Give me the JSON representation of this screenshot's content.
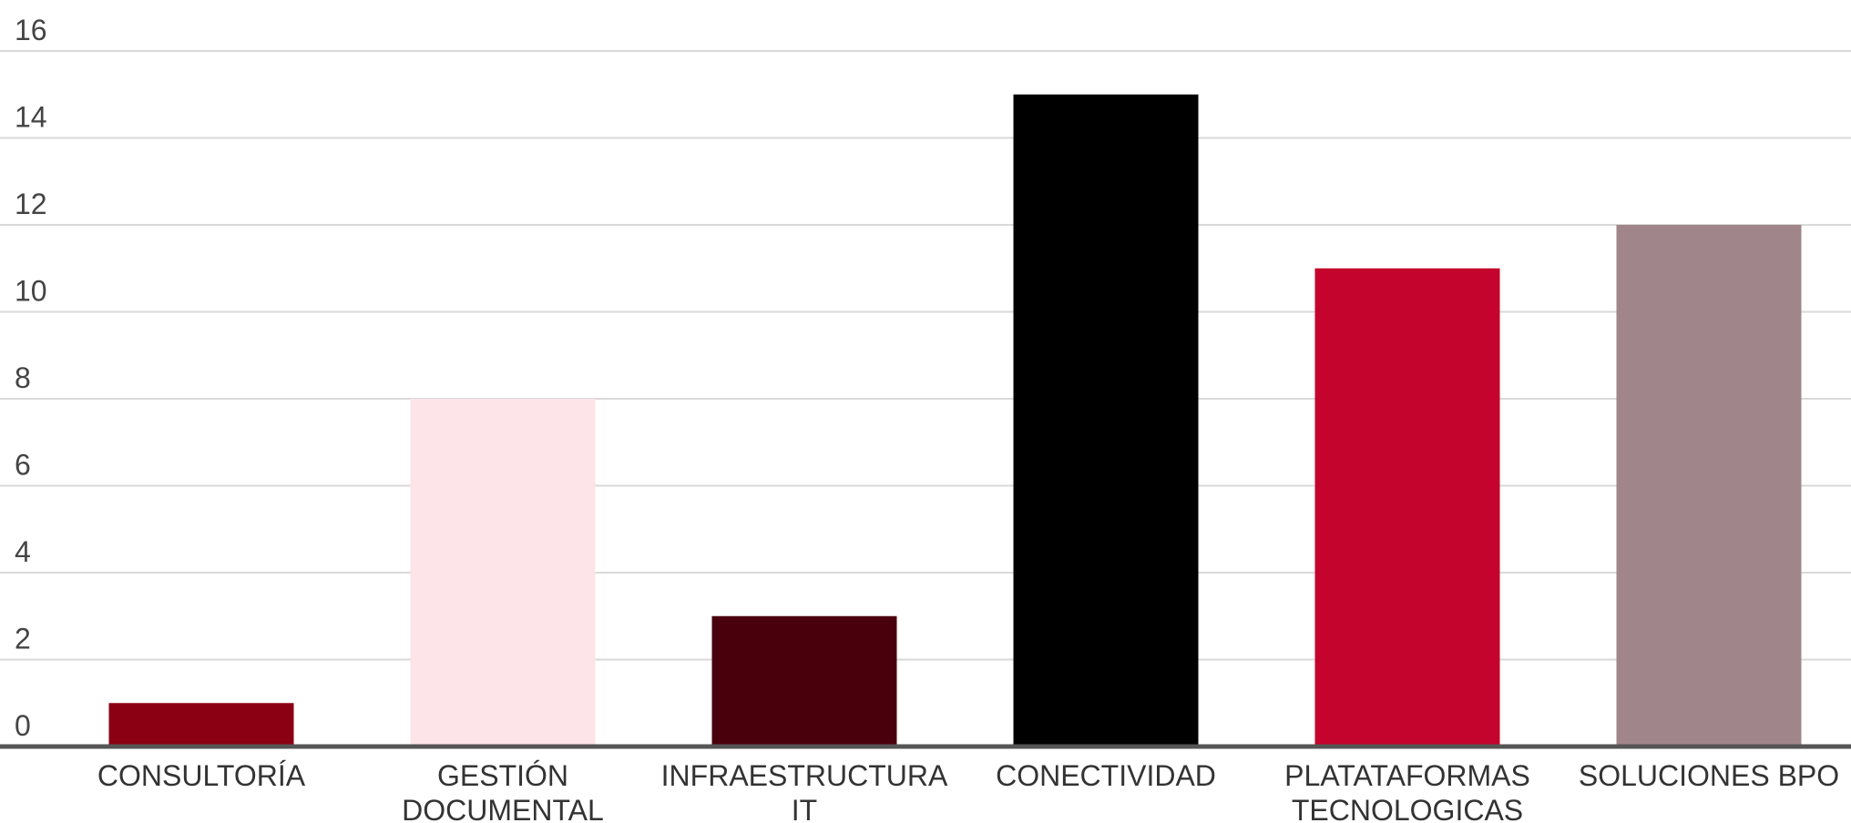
{
  "chart_data": {
    "type": "bar",
    "title": "",
    "xlabel": "",
    "ylabel": "",
    "categories": [
      [
        "CONSULTORÍA"
      ],
      [
        "GESTIÓN",
        "DOCUMENTAL"
      ],
      [
        "INFRAESTRUCTURA",
        "IT"
      ],
      [
        "CONECTIVIDAD"
      ],
      [
        "PLATATAFORMAS",
        "TECNOLOGICAS"
      ],
      [
        "SOLUCIONES BPO"
      ]
    ],
    "values": [
      1,
      8,
      3,
      15,
      11,
      12
    ],
    "colors": [
      "#8b0012",
      "#fde4e8",
      "#4a000c",
      "#000000",
      "#c4042c",
      "#a0868a"
    ],
    "ylim": [
      0,
      16
    ],
    "yticks": [
      0,
      2,
      4,
      6,
      8,
      10,
      12,
      14,
      16
    ],
    "grid": true,
    "legend": "none"
  }
}
